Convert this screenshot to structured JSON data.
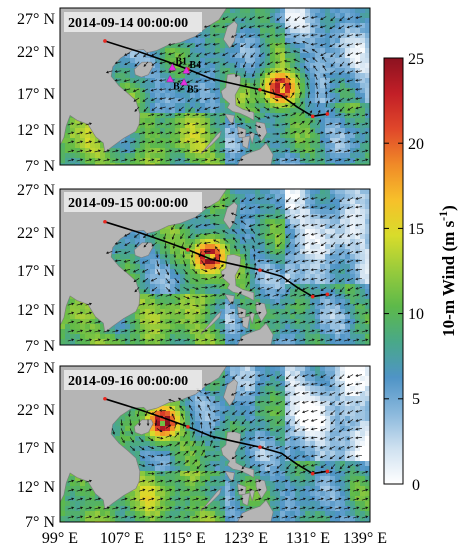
{
  "panels": [
    {
      "date": "2014-09-14 00:00:00",
      "stations": [
        {
          "name": "B1",
          "lon": 113.5,
          "lat": 19.4
        },
        {
          "name": "B4",
          "lon": 115.3,
          "lat": 19.0
        },
        {
          "name": "B2",
          "lon": 113.2,
          "lat": 17.9
        },
        {
          "name": "B5",
          "lon": 115.0,
          "lat": 17.5
        }
      ]
    },
    {
      "date": "2014-09-15 00:00:00",
      "stations": []
    },
    {
      "date": "2014-09-16 00:00:00",
      "stations": []
    }
  ],
  "y_ticks": [
    "27° N",
    "22° N",
    "17° N",
    "12° N",
    "7° N"
  ],
  "x_ticks": [
    "99° E",
    "107° E",
    "115° E",
    "123° E",
    "131° E",
    "139° E"
  ],
  "colorbar": {
    "label_main": "10-m Wind (m s",
    "label_sup": "-1",
    "label_close": ")",
    "ticks": [
      "25",
      "20",
      "15",
      "10",
      "5",
      "0"
    ],
    "min": 0,
    "max": 25,
    "colors": [
      "#ffffff",
      "#cfe1f0",
      "#8ab8dc",
      "#4f94c6",
      "#49a889",
      "#5db94a",
      "#97cb3c",
      "#d8dc2b",
      "#f7c02a",
      "#f08a28",
      "#e0472a",
      "#c21f27",
      "#8c1220"
    ]
  },
  "track": {
    "lons": [
      104.8,
      109.3,
      112.5,
      115.5,
      118.5,
      121.6,
      124.8,
      127.6,
      129.6,
      131.6,
      133.5
    ],
    "lats": [
      22.8,
      21.4,
      20.3,
      19.2,
      18.0,
      17.3,
      16.6,
      15.8,
      14.4,
      13.2,
      13.5
    ],
    "markers": [
      0,
      3,
      6,
      9,
      10
    ]
  },
  "storm_centers": [
    {
      "lon": 127.5,
      "lat": 16.8
    },
    {
      "lon": 118.3,
      "lat": 18.3
    },
    {
      "lon": 112.3,
      "lat": 19.8
    }
  ]
}
